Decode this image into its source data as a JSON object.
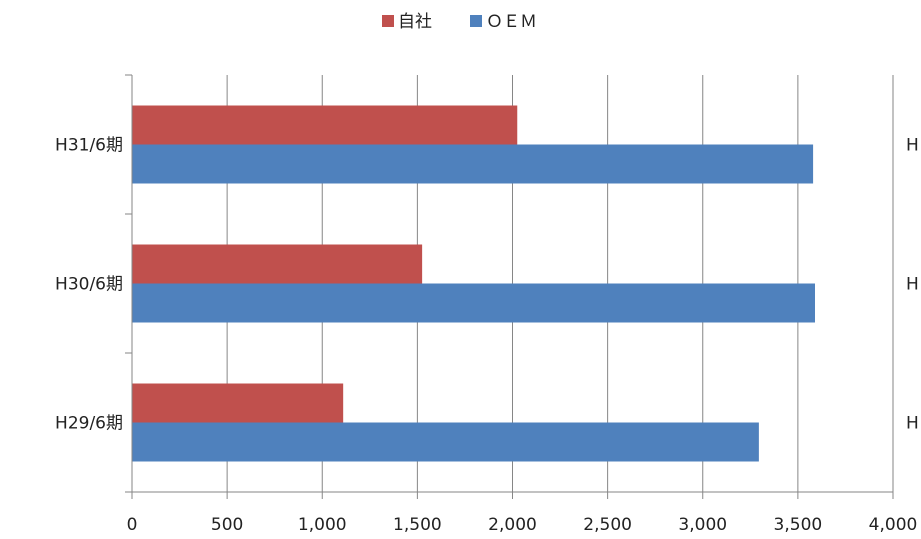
{
  "chart_data": {
    "type": "bar",
    "orientation": "horizontal",
    "categories": [
      "H31/6期",
      "H30/6期",
      "H29/6期"
    ],
    "series": [
      {
        "name": "自社",
        "values": [
          2025,
          1525,
          1110
        ],
        "color": "#C0504D"
      },
      {
        "name": "ＯＥＭ",
        "values": [
          3580,
          3590,
          3295
        ],
        "color": "#4F81BD"
      }
    ],
    "x_ticks": [
      "0",
      "500",
      "1,000",
      "1,500",
      "2,000",
      "2,500",
      "3,000",
      "3,500",
      "4,000"
    ],
    "xlim": [
      0,
      4000
    ],
    "grid": true,
    "legend_position": "top",
    "clipped_labels": [
      "H",
      "H",
      "H"
    ]
  }
}
